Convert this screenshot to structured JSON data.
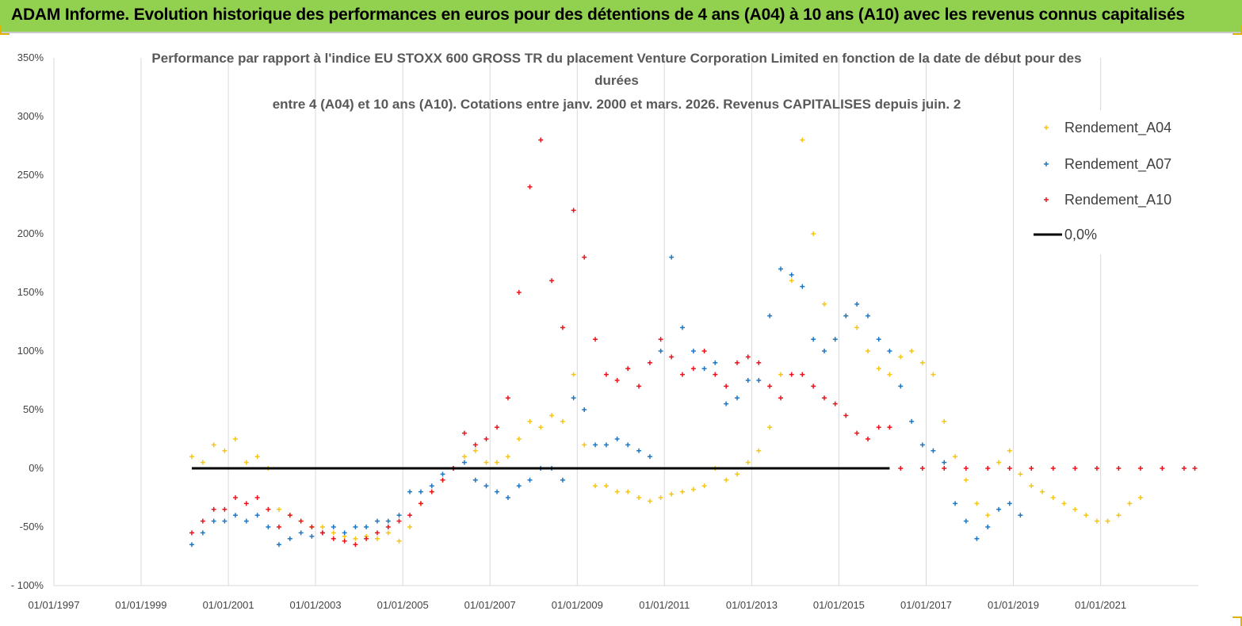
{
  "page": {
    "banner_title": "ADAM Informe. Evolution historique des performances en euros pour des détentions de 4 ans (A04) à 10 ans (A10) avec les revenus connus capitalisés"
  },
  "chart_data": {
    "type": "scatter",
    "title_lines": [
      "Performance par rapport à l'indice EU STOXX 600 GROSS TR  du placement Venture Corporation Limited en fonction de la date de début pour des",
      "durées",
      "entre 4 (A04) et 10 ans (A10).  Cotations entre janv. 2000 et mars. 2026. Revenus CAPITALISES depuis juin. 2"
    ],
    "y_ticks": [
      "- 100%",
      "-50%",
      "0%",
      "50%",
      "100%",
      "150%",
      "200%",
      "250%",
      "300%",
      "350%"
    ],
    "x_ticks": [
      "01/01/1997",
      "01/01/1999",
      "01/01/2001",
      "01/01/2003",
      "01/01/2005",
      "01/01/2007",
      "01/01/2009",
      "01/01/2011",
      "01/01/2013",
      "01/01/2015",
      "01/01/2017",
      "01/01/2019",
      "01/01/2021"
    ],
    "xlim": [
      "1997-01-01",
      "2023-03-31"
    ],
    "ylim": [
      -100,
      350
    ],
    "grid": "vertical",
    "legend_position": "top-right",
    "colors": {
      "A04": "#f5c518",
      "A07": "#1f77c4",
      "A10": "#e8141c",
      "zero": "#000000"
    },
    "series": [
      {
        "name": "Rendement_A04",
        "marker": "plus",
        "points": [
          [
            "2000-03",
            10
          ],
          [
            "2000-06",
            5
          ],
          [
            "2000-09",
            20
          ],
          [
            "2000-12",
            15
          ],
          [
            "2001-03",
            25
          ],
          [
            "2001-06",
            5
          ],
          [
            "2001-09",
            10
          ],
          [
            "2001-12",
            0
          ],
          [
            "2002-03",
            -35
          ],
          [
            "2002-06",
            -40
          ],
          [
            "2002-09",
            -45
          ],
          [
            "2002-12",
            -50
          ],
          [
            "2003-03",
            -50
          ],
          [
            "2003-06",
            -55
          ],
          [
            "2003-09",
            -58
          ],
          [
            "2003-12",
            -60
          ],
          [
            "2004-03",
            -58
          ],
          [
            "2004-06",
            -60
          ],
          [
            "2004-09",
            -55
          ],
          [
            "2004-12",
            -62
          ],
          [
            "2005-03",
            -50
          ],
          [
            "2005-06",
            -30
          ],
          [
            "2005-09",
            -20
          ],
          [
            "2005-12",
            -10
          ],
          [
            "2006-03",
            0
          ],
          [
            "2006-06",
            10
          ],
          [
            "2006-09",
            15
          ],
          [
            "2006-12",
            5
          ],
          [
            "2007-03",
            5
          ],
          [
            "2007-06",
            10
          ],
          [
            "2007-09",
            25
          ],
          [
            "2007-12",
            40
          ],
          [
            "2008-03",
            35
          ],
          [
            "2008-06",
            45
          ],
          [
            "2008-09",
            40
          ],
          [
            "2008-12",
            80
          ],
          [
            "2009-03",
            20
          ],
          [
            "2009-06",
            -15
          ],
          [
            "2009-09",
            -15
          ],
          [
            "2009-12",
            -20
          ],
          [
            "2010-03",
            -20
          ],
          [
            "2010-06",
            -25
          ],
          [
            "2010-09",
            -28
          ],
          [
            "2010-12",
            -25
          ],
          [
            "2011-03",
            -22
          ],
          [
            "2011-06",
            -20
          ],
          [
            "2011-09",
            -18
          ],
          [
            "2011-12",
            -15
          ],
          [
            "2012-03",
            0
          ],
          [
            "2012-06",
            -10
          ],
          [
            "2012-09",
            -5
          ],
          [
            "2012-12",
            5
          ],
          [
            "2013-03",
            15
          ],
          [
            "2013-06",
            35
          ],
          [
            "2013-09",
            80
          ],
          [
            "2013-12",
            160
          ],
          [
            "2014-03",
            280
          ],
          [
            "2014-06",
            200
          ],
          [
            "2014-09",
            140
          ],
          [
            "2014-12",
            110
          ],
          [
            "2015-03",
            130
          ],
          [
            "2015-06",
            120
          ],
          [
            "2015-09",
            100
          ],
          [
            "2015-12",
            85
          ],
          [
            "2016-03",
            80
          ],
          [
            "2016-06",
            95
          ],
          [
            "2016-09",
            100
          ],
          [
            "2016-12",
            90
          ],
          [
            "2017-03",
            80
          ],
          [
            "2017-06",
            40
          ],
          [
            "2017-09",
            10
          ],
          [
            "2017-12",
            -10
          ],
          [
            "2018-03",
            -30
          ],
          [
            "2018-06",
            -40
          ],
          [
            "2018-09",
            5
          ],
          [
            "2018-12",
            15
          ],
          [
            "2019-03",
            -5
          ],
          [
            "2019-06",
            -15
          ],
          [
            "2019-09",
            -20
          ],
          [
            "2019-12",
            -25
          ],
          [
            "2020-03",
            -30
          ],
          [
            "2020-06",
            -35
          ],
          [
            "2020-09",
            -40
          ],
          [
            "2020-12",
            -45
          ],
          [
            "2021-03",
            -45
          ],
          [
            "2021-06",
            -40
          ],
          [
            "2021-09",
            -30
          ],
          [
            "2021-12",
            -25
          ]
        ]
      },
      {
        "name": "Rendement_A07",
        "marker": "plus",
        "points": [
          [
            "2000-03",
            -65
          ],
          [
            "2000-06",
            -55
          ],
          [
            "2000-09",
            -45
          ],
          [
            "2000-12",
            -45
          ],
          [
            "2001-03",
            -40
          ],
          [
            "2001-06",
            -45
          ],
          [
            "2001-09",
            -40
          ],
          [
            "2001-12",
            -50
          ],
          [
            "2002-03",
            -65
          ],
          [
            "2002-06",
            -60
          ],
          [
            "2002-09",
            -55
          ],
          [
            "2002-12",
            -58
          ],
          [
            "2003-03",
            -55
          ],
          [
            "2003-06",
            -50
          ],
          [
            "2003-09",
            -55
          ],
          [
            "2003-12",
            -50
          ],
          [
            "2004-03",
            -50
          ],
          [
            "2004-06",
            -45
          ],
          [
            "2004-09",
            -45
          ],
          [
            "2004-12",
            -40
          ],
          [
            "2005-03",
            -20
          ],
          [
            "2005-06",
            -20
          ],
          [
            "2005-09",
            -15
          ],
          [
            "2005-12",
            -5
          ],
          [
            "2006-03",
            0
          ],
          [
            "2006-06",
            5
          ],
          [
            "2006-09",
            -10
          ],
          [
            "2006-12",
            -15
          ],
          [
            "2007-03",
            -20
          ],
          [
            "2007-06",
            -25
          ],
          [
            "2007-09",
            -15
          ],
          [
            "2007-12",
            -10
          ],
          [
            "2008-03",
            0
          ],
          [
            "2008-06",
            0
          ],
          [
            "2008-09",
            -10
          ],
          [
            "2008-12",
            60
          ],
          [
            "2009-03",
            50
          ],
          [
            "2009-06",
            20
          ],
          [
            "2009-09",
            20
          ],
          [
            "2009-12",
            25
          ],
          [
            "2010-03",
            20
          ],
          [
            "2010-06",
            15
          ],
          [
            "2010-09",
            10
          ],
          [
            "2010-12",
            100
          ],
          [
            "2011-03",
            180
          ],
          [
            "2011-06",
            120
          ],
          [
            "2011-09",
            100
          ],
          [
            "2011-12",
            85
          ],
          [
            "2012-03",
            90
          ],
          [
            "2012-06",
            55
          ],
          [
            "2012-09",
            60
          ],
          [
            "2012-12",
            75
          ],
          [
            "2013-03",
            75
          ],
          [
            "2013-06",
            130
          ],
          [
            "2013-09",
            170
          ],
          [
            "2013-12",
            165
          ],
          [
            "2014-03",
            155
          ],
          [
            "2014-06",
            110
          ],
          [
            "2014-09",
            100
          ],
          [
            "2014-12",
            110
          ],
          [
            "2015-03",
            130
          ],
          [
            "2015-06",
            140
          ],
          [
            "2015-09",
            130
          ],
          [
            "2015-12",
            110
          ],
          [
            "2016-03",
            100
          ],
          [
            "2016-06",
            70
          ],
          [
            "2016-09",
            40
          ],
          [
            "2016-12",
            20
          ],
          [
            "2017-03",
            15
          ],
          [
            "2017-06",
            5
          ],
          [
            "2017-09",
            -30
          ],
          [
            "2017-12",
            -45
          ],
          [
            "2018-03",
            -60
          ],
          [
            "2018-06",
            -50
          ],
          [
            "2018-09",
            -35
          ],
          [
            "2018-12",
            -30
          ],
          [
            "2019-03",
            -40
          ]
        ]
      },
      {
        "name": "Rendement_A10",
        "marker": "plus",
        "points": [
          [
            "2000-03",
            -55
          ],
          [
            "2000-06",
            -45
          ],
          [
            "2000-09",
            -35
          ],
          [
            "2000-12",
            -35
          ],
          [
            "2001-03",
            -25
          ],
          [
            "2001-06",
            -30
          ],
          [
            "2001-09",
            -25
          ],
          [
            "2001-12",
            -35
          ],
          [
            "2002-03",
            -50
          ],
          [
            "2002-06",
            -40
          ],
          [
            "2002-09",
            -45
          ],
          [
            "2002-12",
            -50
          ],
          [
            "2003-03",
            -55
          ],
          [
            "2003-06",
            -60
          ],
          [
            "2003-09",
            -62
          ],
          [
            "2003-12",
            -65
          ],
          [
            "2004-03",
            -60
          ],
          [
            "2004-06",
            -55
          ],
          [
            "2004-09",
            -50
          ],
          [
            "2004-12",
            -45
          ],
          [
            "2005-03",
            -40
          ],
          [
            "2005-06",
            -30
          ],
          [
            "2005-09",
            -20
          ],
          [
            "2005-12",
            -10
          ],
          [
            "2006-03",
            0
          ],
          [
            "2006-06",
            30
          ],
          [
            "2006-09",
            20
          ],
          [
            "2006-12",
            25
          ],
          [
            "2007-03",
            35
          ],
          [
            "2007-06",
            60
          ],
          [
            "2007-09",
            150
          ],
          [
            "2007-12",
            240
          ],
          [
            "2008-03",
            280
          ],
          [
            "2008-06",
            160
          ],
          [
            "2008-09",
            120
          ],
          [
            "2008-12",
            220
          ],
          [
            "2009-03",
            180
          ],
          [
            "2009-06",
            110
          ],
          [
            "2009-09",
            80
          ],
          [
            "2009-12",
            75
          ],
          [
            "2010-03",
            85
          ],
          [
            "2010-06",
            70
          ],
          [
            "2010-09",
            90
          ],
          [
            "2010-12",
            110
          ],
          [
            "2011-03",
            95
          ],
          [
            "2011-06",
            80
          ],
          [
            "2011-09",
            85
          ],
          [
            "2011-12",
            100
          ],
          [
            "2012-03",
            80
          ],
          [
            "2012-06",
            70
          ],
          [
            "2012-09",
            90
          ],
          [
            "2012-12",
            95
          ],
          [
            "2013-03",
            90
          ],
          [
            "2013-06",
            70
          ],
          [
            "2013-09",
            60
          ],
          [
            "2013-12",
            80
          ],
          [
            "2014-03",
            80
          ],
          [
            "2014-06",
            70
          ],
          [
            "2014-09",
            60
          ],
          [
            "2014-12",
            55
          ],
          [
            "2015-03",
            45
          ],
          [
            "2015-06",
            30
          ],
          [
            "2015-09",
            25
          ],
          [
            "2015-12",
            35
          ],
          [
            "2016-03",
            35
          ],
          [
            "2016-06",
            0
          ],
          [
            "2016-12",
            0
          ],
          [
            "2017-06",
            0
          ],
          [
            "2017-12",
            0
          ],
          [
            "2018-06",
            0
          ],
          [
            "2018-12",
            0
          ],
          [
            "2019-06",
            0
          ],
          [
            "2019-12",
            0
          ],
          [
            "2020-06",
            0
          ],
          [
            "2020-12",
            0
          ],
          [
            "2021-06",
            0
          ],
          [
            "2021-12",
            0
          ],
          [
            "2022-06",
            0
          ],
          [
            "2022-12",
            0
          ],
          [
            "2023-03",
            0
          ]
        ]
      },
      {
        "name": "0,0%",
        "marker": "line",
        "points": [
          [
            "2000-03",
            0
          ],
          [
            "2016-03",
            0
          ]
        ]
      }
    ]
  }
}
